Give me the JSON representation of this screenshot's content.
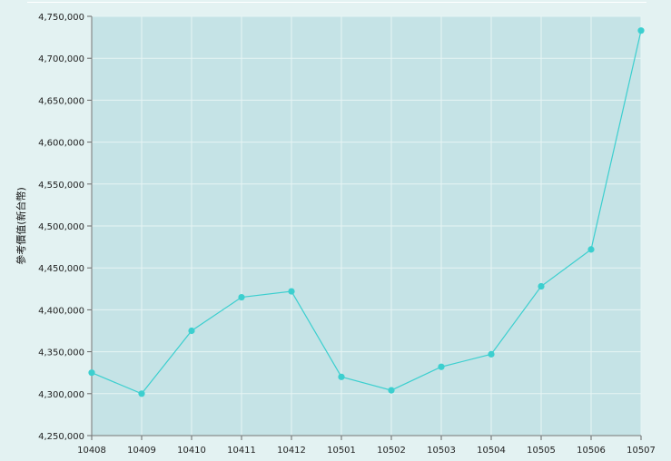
{
  "chart_data": {
    "type": "line",
    "title": "",
    "xlabel": "",
    "ylabel": "參考價值(新台幣)",
    "categories": [
      "10408",
      "10409",
      "10410",
      "10411",
      "10412",
      "10501",
      "10502",
      "10503",
      "10504",
      "10505",
      "10506",
      "10507"
    ],
    "series": [
      {
        "values": [
          4325000,
          4300000,
          4375000,
          4415000,
          4422000,
          4320000,
          4304000,
          4332000,
          4347000,
          4428000,
          4472000,
          4733000
        ]
      }
    ],
    "ylim": [
      4250000,
      4750000
    ],
    "yticks": [
      "4,250,000",
      "4,300,000",
      "4,350,000",
      "4,400,000",
      "4,450,000",
      "4,500,000",
      "4,550,000",
      "4,600,000",
      "4,650,000",
      "4,700,000",
      "4,750,000"
    ],
    "grid": true,
    "legend": "none",
    "colors": {
      "plot_bg": "#c5e3e6",
      "line": "#3ccfcf",
      "grid": "#e6f4f4",
      "page_bg": "#e3f2f2"
    }
  }
}
